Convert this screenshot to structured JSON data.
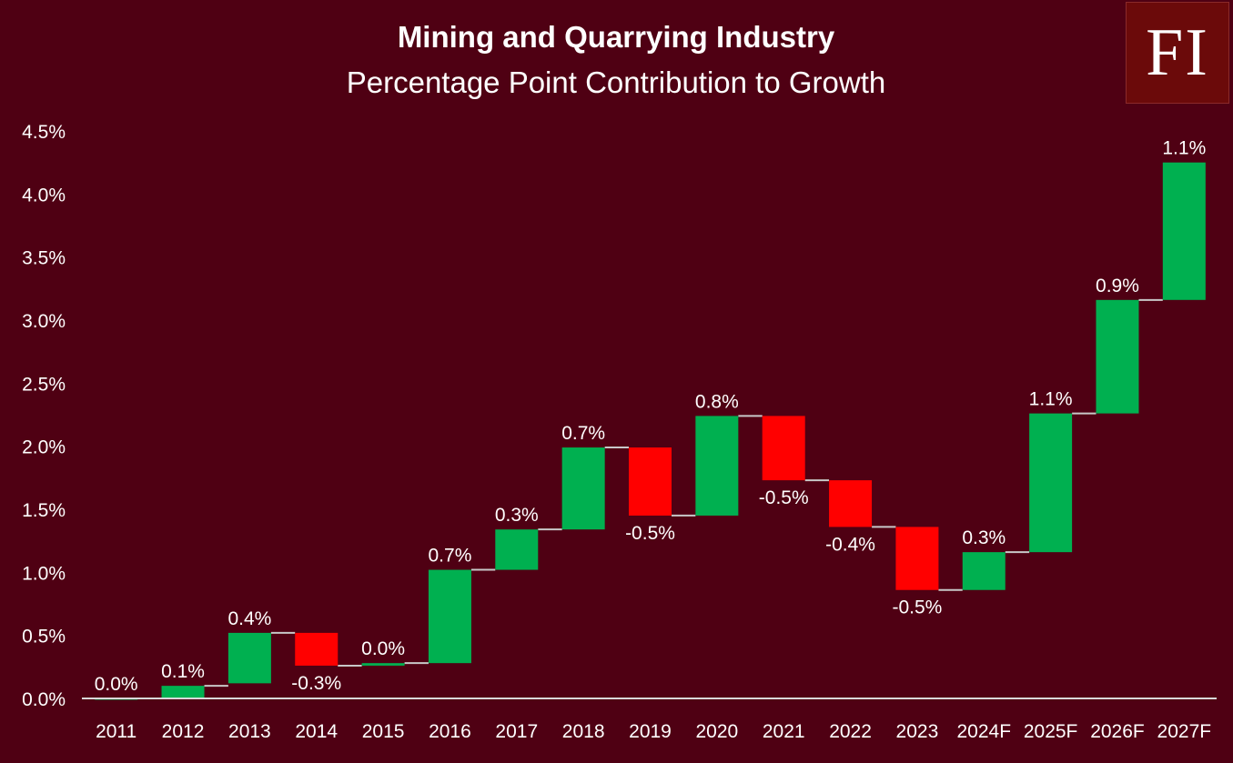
{
  "logo": {
    "text": "FI"
  },
  "chart_data": {
    "type": "waterfall",
    "title": "Mining and Quarrying Industry",
    "subtitle": "Percentage Point Contribution to Growth",
    "ylim": [
      0,
      4.5
    ],
    "yticks": [
      "0.0%",
      "0.5%",
      "1.0%",
      "1.5%",
      "2.0%",
      "2.5%",
      "3.0%",
      "3.5%",
      "4.0%",
      "4.5%"
    ],
    "ytick_values": [
      0,
      0.5,
      1.0,
      1.5,
      2.0,
      2.5,
      3.0,
      3.5,
      4.0,
      4.5
    ],
    "categories": [
      "2011",
      "2012",
      "2013",
      "2014",
      "2015",
      "2016",
      "2017",
      "2018",
      "2019",
      "2020",
      "2021",
      "2022",
      "2023",
      "2024F",
      "2025F",
      "2026F",
      "2027F"
    ],
    "values": [
      0.0,
      0.1,
      0.4,
      -0.3,
      0.0,
      0.7,
      0.3,
      0.7,
      -0.5,
      0.8,
      -0.5,
      -0.4,
      -0.5,
      0.3,
      1.1,
      0.9,
      1.1
    ],
    "starts": [
      0.0,
      0.0,
      0.12,
      0.52,
      0.26,
      0.28,
      1.02,
      1.34,
      1.99,
      1.45,
      2.24,
      1.73,
      1.36,
      0.86,
      1.16,
      2.26,
      3.16
    ],
    "ends": [
      0.0,
      0.1,
      0.52,
      0.26,
      0.28,
      1.02,
      1.34,
      1.99,
      1.45,
      2.24,
      1.73,
      1.36,
      0.86,
      1.16,
      2.26,
      3.16,
      4.25
    ],
    "labels": [
      "0.0%",
      "0.1%",
      "0.4%",
      "-0.3%",
      "0.0%",
      "0.7%",
      "0.3%",
      "0.7%",
      "-0.5%",
      "0.8%",
      "-0.5%",
      "-0.4%",
      "-0.5%",
      "0.3%",
      "1.1%",
      "0.9%",
      "1.1%"
    ],
    "colors": {
      "increase": "#00b050",
      "decrease": "#ff0000",
      "connector": "#c8c8c8",
      "axis": "#d9d9d9"
    }
  }
}
